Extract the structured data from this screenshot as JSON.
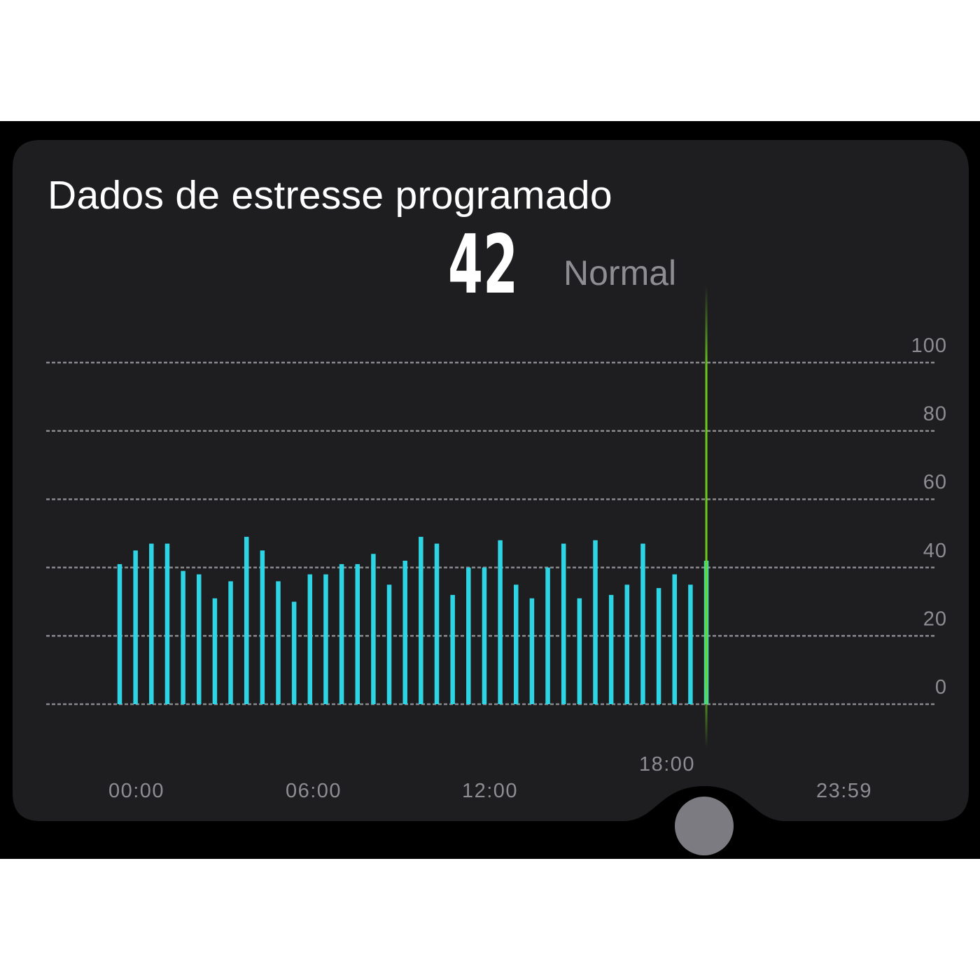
{
  "card": {
    "title": "Dados de estresse programado",
    "current_value": "42",
    "current_level": "Normal"
  },
  "colors": {
    "bar": "#2fd4e4",
    "cursor": "#6ed41c",
    "grid": "#8a8a8e",
    "card_bg": "#1e1e20",
    "handle": "#7c7b82"
  },
  "chart_data": {
    "type": "bar",
    "title": "Dados de estresse programado",
    "x_axis": {
      "start": "00:00",
      "end": "23:59",
      "tick_labels": [
        "00:00",
        "06:00",
        "12:00",
        "18:00",
        "23:59"
      ]
    },
    "y_axis": {
      "range": [
        0,
        100
      ],
      "tick_labels": [
        "100",
        "80",
        "60",
        "40",
        "20",
        "0"
      ]
    },
    "grid": "dashed horizontal",
    "selected_time_marker": "18:00",
    "selected_value": 42,
    "values": [
      41,
      45,
      47,
      47,
      39,
      38,
      31,
      36,
      49,
      45,
      36,
      30,
      38,
      38,
      41,
      41,
      44,
      35,
      42,
      49,
      47,
      32,
      40,
      40,
      48,
      35,
      31,
      40,
      47,
      31,
      48,
      32,
      35,
      47,
      34,
      38,
      35,
      42
    ]
  },
  "icons": {
    "slider_handle": "circle-handle-icon"
  }
}
